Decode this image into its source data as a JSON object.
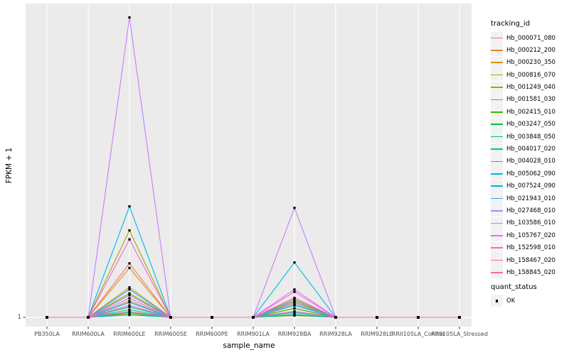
{
  "chart_data": {
    "type": "line",
    "title": "",
    "xlabel": "sample_name",
    "ylabel": "FPKM + 1",
    "y_tick_labels": [
      "1"
    ],
    "value_units": "relative height above baseline (0 = y tick '1'; 1 = tallest peak; absolute FPKM scale not labeled in image)",
    "grid": "white major gridlines on grey panel (ggplot2 style)",
    "legend_position": "right",
    "point_marker": "small black square at every data point (quant_status = OK)",
    "categories": [
      "PB350LA",
      "RRIM600LA",
      "RRIM600LE",
      "RRIM600SE",
      "RRIM600PE",
      "RRIM901LA",
      "RRIM928BA",
      "RRIM928LA",
      "RRIM928LE",
      "RRII105LA_Control",
      "RRII105LA_Stressed"
    ],
    "series": [
      {
        "name": "Hb_000071_080",
        "color": "#F8766D",
        "values": [
          0,
          0,
          0.18,
          0,
          0,
          0,
          0.05,
          0,
          0,
          0,
          0
        ]
      },
      {
        "name": "Hb_000212_200",
        "color": "#E88526",
        "values": [
          0,
          0,
          0.055,
          0,
          0,
          0,
          0.03,
          0,
          0,
          0,
          0
        ]
      },
      {
        "name": "Hb_000230_350",
        "color": "#D89000",
        "values": [
          0,
          0,
          0.165,
          0,
          0,
          0,
          0.04,
          0,
          0,
          0,
          0
        ]
      },
      {
        "name": "Hb_000816_070",
        "color": "#C09B00",
        "values": [
          0,
          0,
          0.1,
          0,
          0,
          0,
          0.05,
          0,
          0,
          0,
          0
        ]
      },
      {
        "name": "Hb_001249_040",
        "color": "#A3A500",
        "values": [
          0,
          0,
          0.29,
          0,
          0,
          0,
          0.06,
          0,
          0,
          0,
          0
        ]
      },
      {
        "name": "Hb_001581_030",
        "color": "#7CAE00",
        "values": [
          0,
          0,
          0.012,
          0,
          0,
          0,
          0.006,
          0,
          0,
          0,
          0
        ]
      },
      {
        "name": "Hb_002415_010",
        "color": "#39B600",
        "values": [
          0,
          0,
          0.08,
          0,
          0,
          0,
          0.03,
          0,
          0,
          0,
          0
        ]
      },
      {
        "name": "Hb_003247_050",
        "color": "#00BB4E",
        "values": [
          0,
          0,
          0.035,
          0,
          0,
          0,
          0.02,
          0,
          0,
          0,
          0
        ]
      },
      {
        "name": "Hb_003848_050",
        "color": "#00BF7D",
        "values": [
          0,
          0,
          0.016,
          0,
          0,
          0,
          0.01,
          0,
          0,
          0,
          0
        ]
      },
      {
        "name": "Hb_004017_020",
        "color": "#00C1A3",
        "values": [
          0,
          0,
          0.026,
          0,
          0,
          0,
          0.016,
          0,
          0,
          0,
          0
        ]
      },
      {
        "name": "Hb_004028_010",
        "color": "#00BFC4",
        "values": [
          0,
          0,
          0.008,
          0,
          0,
          0,
          0.008,
          0,
          0,
          0,
          0
        ]
      },
      {
        "name": "Hb_005062_090",
        "color": "#00BAE0",
        "values": [
          0,
          0,
          0.37,
          0,
          0,
          0,
          0.183,
          0,
          0,
          0,
          0
        ]
      },
      {
        "name": "Hb_007524_090",
        "color": "#00B0F6",
        "values": [
          0,
          0,
          0.05,
          0,
          0,
          0,
          0.04,
          0,
          0,
          0,
          0
        ]
      },
      {
        "name": "Hb_021943_010",
        "color": "#35A2FF",
        "values": [
          0,
          0,
          0.093,
          0,
          0,
          0,
          0.055,
          0,
          0,
          0,
          0
        ]
      },
      {
        "name": "Hb_027468_010",
        "color": "#9590FF",
        "values": [
          0,
          0,
          0.064,
          0,
          0,
          0,
          0.045,
          0,
          0,
          0,
          0
        ]
      },
      {
        "name": "Hb_103586_010",
        "color": "#C77CFF",
        "values": [
          0,
          0,
          1.0,
          0,
          0,
          0,
          0.365,
          0,
          0,
          0,
          0
        ]
      },
      {
        "name": "Hb_105767_020",
        "color": "#E76BF3",
        "values": [
          0,
          0,
          0.04,
          0,
          0,
          0,
          0.093,
          0,
          0,
          0,
          0
        ]
      },
      {
        "name": "Hb_152598_010",
        "color": "#FA62DB",
        "values": [
          0,
          0,
          0.26,
          0,
          0,
          0,
          0.085,
          0,
          0,
          0,
          0
        ]
      },
      {
        "name": "Hb_158467_020",
        "color": "#FF62BC",
        "values": [
          0,
          0,
          0.074,
          0,
          0,
          0,
          0.065,
          0,
          0,
          0,
          0
        ]
      },
      {
        "name": "Hb_158845_020",
        "color": "#FF6A98",
        "values": [
          0,
          0,
          0.02,
          0,
          0,
          0,
          0.02,
          0,
          0,
          0,
          0
        ]
      }
    ]
  },
  "legend": {
    "tracking_title": "tracking_id",
    "quant_title": "quant_status",
    "quant_items": [
      {
        "label": "OK",
        "marker": "black-square"
      }
    ]
  },
  "colors": {
    "panel_bg": "#EBEBEB",
    "gridline": "#FFFFFF",
    "axis_text": "#4D4D4D",
    "title_text": "#000000",
    "tick_mark": "#333333",
    "legend_key_bg": "#F2F2F2",
    "point_marker": "#000000"
  }
}
